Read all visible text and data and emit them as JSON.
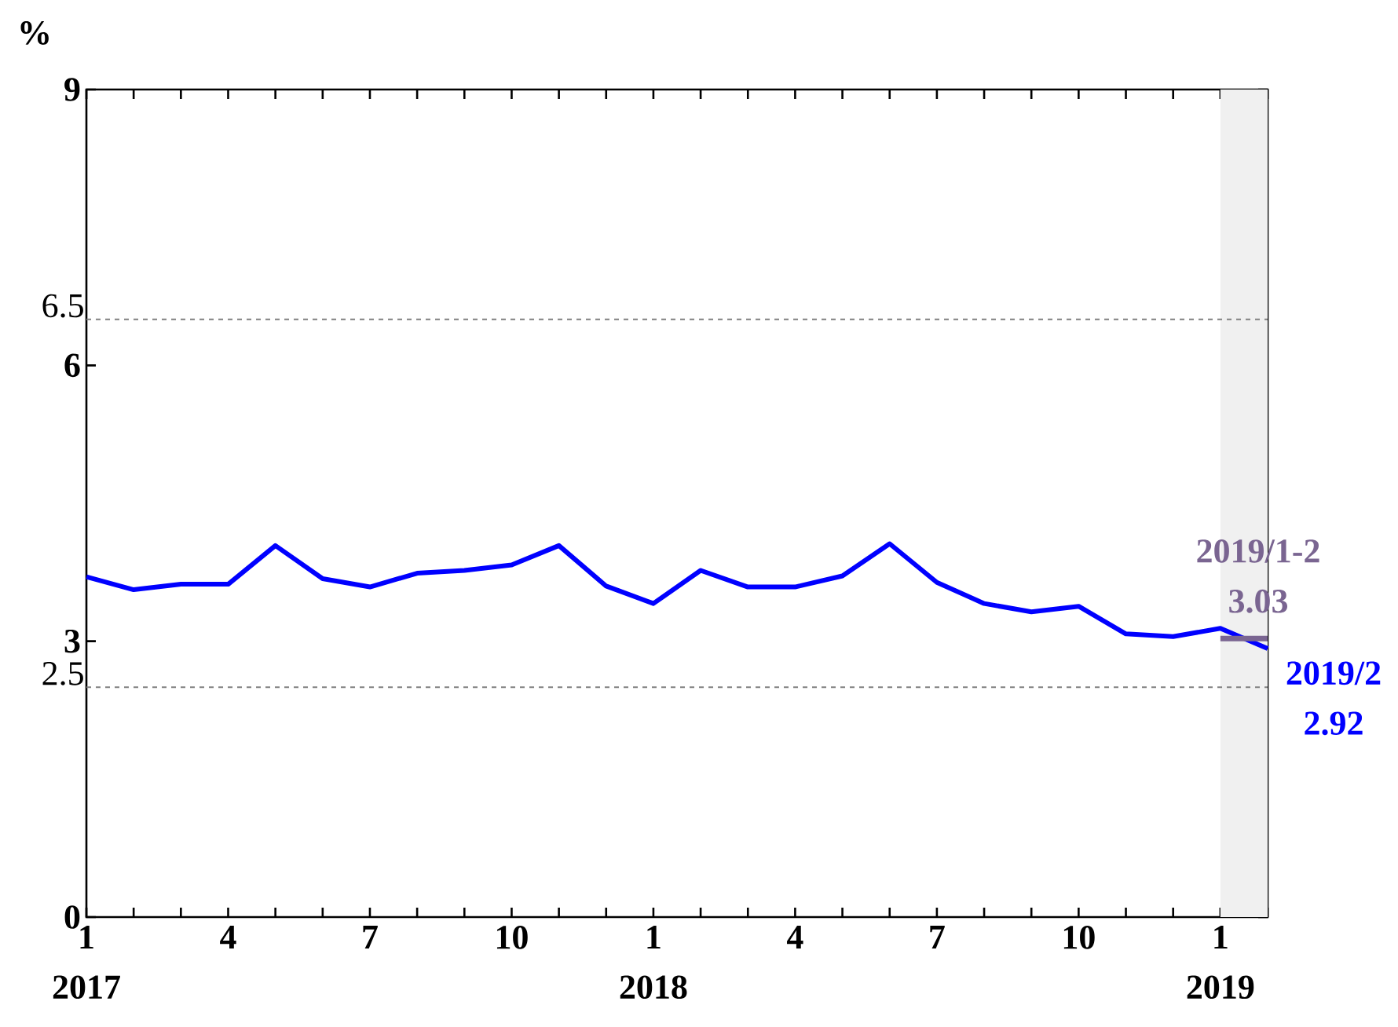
{
  "chart_data": {
    "type": "line",
    "ylabel": "%",
    "x": [
      "2017-01",
      "2017-02",
      "2017-03",
      "2017-04",
      "2017-05",
      "2017-06",
      "2017-07",
      "2017-08",
      "2017-09",
      "2017-10",
      "2017-11",
      "2017-12",
      "2018-01",
      "2018-02",
      "2018-03",
      "2018-04",
      "2018-05",
      "2018-06",
      "2018-07",
      "2018-08",
      "2018-09",
      "2018-10",
      "2018-11",
      "2018-12",
      "2019-01",
      "2019-02"
    ],
    "series": [
      {
        "color": "#0000ff",
        "values": [
          3.7,
          3.56,
          3.62,
          3.62,
          4.04,
          3.68,
          3.59,
          3.74,
          3.77,
          3.83,
          4.04,
          3.6,
          3.41,
          3.77,
          3.59,
          3.59,
          3.71,
          4.06,
          3.64,
          3.41,
          3.32,
          3.38,
          3.08,
          3.05,
          3.14,
          2.92
        ]
      },
      {
        "color": "#7a6591",
        "x": [
          "2019-01",
          "2019-02"
        ],
        "values": [
          3.03,
          3.03
        ]
      }
    ],
    "xlim": [
      "2017-01",
      "2019-02"
    ],
    "xticks": [
      {
        "value": "2017-01",
        "label": "1"
      },
      {
        "value": "2017-02",
        "label": null
      },
      {
        "value": "2017-03",
        "label": null
      },
      {
        "value": "2017-04",
        "label": "4"
      },
      {
        "value": "2017-05",
        "label": null
      },
      {
        "value": "2017-06",
        "label": null
      },
      {
        "value": "2017-07",
        "label": "7"
      },
      {
        "value": "2017-08",
        "label": null
      },
      {
        "value": "2017-09",
        "label": null
      },
      {
        "value": "2017-10",
        "label": "10"
      },
      {
        "value": "2017-11",
        "label": null
      },
      {
        "value": "2017-12",
        "label": null
      },
      {
        "value": "2018-01",
        "label": "1"
      },
      {
        "value": "2018-02",
        "label": null
      },
      {
        "value": "2018-03",
        "label": null
      },
      {
        "value": "2018-04",
        "label": "4"
      },
      {
        "value": "2018-05",
        "label": null
      },
      {
        "value": "2018-06",
        "label": null
      },
      {
        "value": "2018-07",
        "label": "7"
      },
      {
        "value": "2018-08",
        "label": null
      },
      {
        "value": "2018-09",
        "label": null
      },
      {
        "value": "2018-10",
        "label": "10"
      },
      {
        "value": "2018-11",
        "label": null
      },
      {
        "value": "2018-12",
        "label": null
      },
      {
        "value": "2019-01",
        "label": "1"
      },
      {
        "value": "2019-02",
        "label": null
      }
    ],
    "ylim": [
      0,
      9
    ],
    "yticks": [
      0,
      3,
      6,
      9
    ],
    "ref_lines": [
      {
        "axis": "y",
        "value": 6.5,
        "label": "6.5",
        "color": "#808080",
        "line_style": "dashed"
      },
      {
        "axis": "y",
        "value": 2.5,
        "label": "2.5",
        "color": "#808080",
        "line_style": "dashed"
      }
    ],
    "bands": [
      {
        "axis": "x",
        "from": "2019-01",
        "to": "2019-02",
        "color": "#f0f0f0"
      }
    ],
    "annotations": [
      {
        "text": "2019/1-2",
        "x": "2019-02",
        "y": 3.03
      },
      {
        "text": "3.03",
        "x": "2019-02",
        "y": 3.03
      },
      {
        "text": "2019/2",
        "x": "2019-02",
        "y": 2.92
      },
      {
        "text": "2.92",
        "x": "2019-02",
        "y": 2.92
      },
      "2017",
      "2018",
      "2019"
    ],
    "marker": "none",
    "line_style": "solid"
  }
}
